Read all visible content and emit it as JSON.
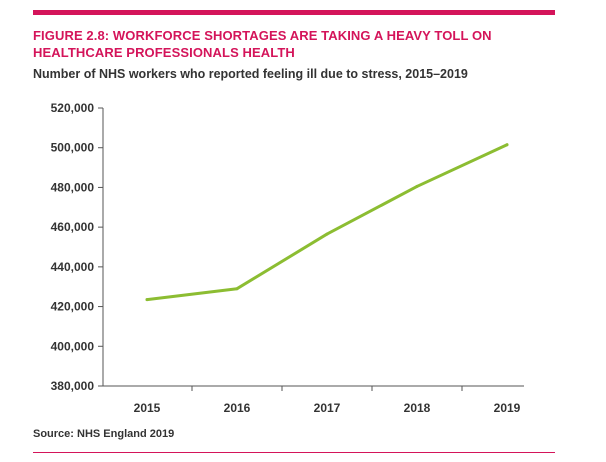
{
  "figure": {
    "title": "FIGURE 2.8: WORKFORCE SHORTAGES ARE TAKING A HEAVY TOLL ON HEALTHCARE PROFESSIONALS HEALTH",
    "subtitle": "Number of NHS workers who reported feeling ill due to stress, 2015–2019",
    "source": "Source: NHS England 2019"
  },
  "colors": {
    "accent": "#d4145a",
    "line": "#8cbd32",
    "axis": "#555555",
    "text": "#333333"
  },
  "chart_data": {
    "type": "line",
    "title": "FIGURE 2.8: WORKFORCE SHORTAGES ARE TAKING A HEAVY TOLL ON HEALTHCARE PROFESSIONALS HEALTH",
    "subtitle": "Number of NHS workers who reported feeling ill due to stress, 2015–2019",
    "xlabel": "",
    "ylabel": "",
    "categories": [
      "2015",
      "2016",
      "2017",
      "2018",
      "2019"
    ],
    "series": [
      {
        "values": [
          423500,
          429000,
          456500,
          480500,
          501500
        ]
      }
    ],
    "ylim": [
      380000,
      520000
    ],
    "yticks": [
      380000,
      400000,
      420000,
      440000,
      460000,
      480000,
      500000,
      520000
    ],
    "ytick_labels": [
      "380,000",
      "400,000",
      "420,000",
      "440,000",
      "460,000",
      "480,000",
      "500,000",
      "520,000"
    ],
    "grid": false,
    "legend": "none"
  }
}
